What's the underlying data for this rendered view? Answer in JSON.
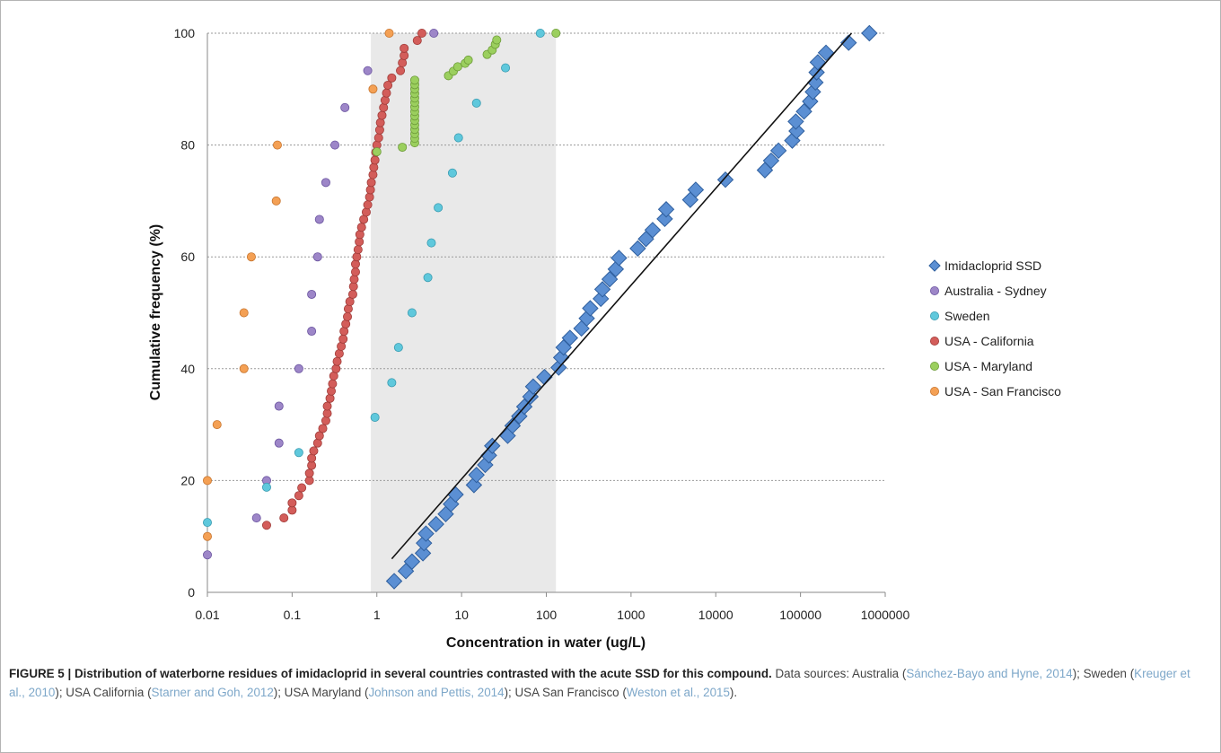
{
  "chart_data": {
    "type": "scatter",
    "xlabel": "Concentration in water (ug/L)",
    "ylabel": "Cumulative frequency (%)",
    "xscale": "log",
    "xlim": [
      0.01,
      1000000
    ],
    "ylim": [
      0,
      100
    ],
    "x_ticks": [
      "0.01",
      "0.1",
      "1",
      "10",
      "100",
      "1000",
      "10000",
      "100000",
      "1000000"
    ],
    "y_ticks": [
      "0",
      "20",
      "40",
      "60",
      "80",
      "100"
    ],
    "grid": "horizontal dotted",
    "shaded_band": {
      "x_from": 0.85,
      "x_to": 130,
      "color": "#e9e9e9"
    },
    "legend_position": "right",
    "trendline": {
      "series": "Imidacloprid SSD",
      "from": [
        1.5,
        6
      ],
      "to": [
        400000,
        100
      ],
      "color": "#111111"
    },
    "series": [
      {
        "name": "Imidacloprid SSD",
        "marker": "diamond",
        "color": "#5b8fd3",
        "stroke": "#2f5f9e",
        "points": [
          [
            1.6,
            2
          ],
          [
            2.2,
            3.8
          ],
          [
            2.6,
            5.5
          ],
          [
            3.5,
            7
          ],
          [
            3.6,
            8.8
          ],
          [
            3.8,
            10.5
          ],
          [
            5,
            12.2
          ],
          [
            6.5,
            14
          ],
          [
            7.5,
            15.8
          ],
          [
            8.5,
            17.5
          ],
          [
            14,
            19.2
          ],
          [
            15,
            21
          ],
          [
            19,
            22.8
          ],
          [
            21,
            24.5
          ],
          [
            23,
            26.2
          ],
          [
            35,
            28
          ],
          [
            40,
            29.8
          ],
          [
            48,
            31.5
          ],
          [
            55,
            33.2
          ],
          [
            65,
            35
          ],
          [
            70,
            36.8
          ],
          [
            95,
            38.5
          ],
          [
            140,
            40.2
          ],
          [
            150,
            42
          ],
          [
            160,
            43.8
          ],
          [
            190,
            45.5
          ],
          [
            260,
            47.2
          ],
          [
            300,
            49
          ],
          [
            330,
            50.8
          ],
          [
            440,
            52.5
          ],
          [
            460,
            54.2
          ],
          [
            560,
            56
          ],
          [
            660,
            57.8
          ],
          [
            720,
            59.8
          ],
          [
            1200,
            61.5
          ],
          [
            1500,
            63.2
          ],
          [
            1800,
            64.8
          ],
          [
            2500,
            66.8
          ],
          [
            2600,
            68.5
          ],
          [
            5000,
            70.2
          ],
          [
            5800,
            72
          ],
          [
            13000,
            73.8
          ],
          [
            38000,
            75.5
          ],
          [
            45000,
            77.2
          ],
          [
            55000,
            79
          ],
          [
            80000,
            80.8
          ],
          [
            90000,
            82.5
          ],
          [
            88000,
            84.2
          ],
          [
            110000,
            86
          ],
          [
            130000,
            87.8
          ],
          [
            140000,
            89.5
          ],
          [
            150000,
            91.2
          ],
          [
            155000,
            93
          ],
          [
            160000,
            94.8
          ],
          [
            200000,
            96.5
          ],
          [
            370000,
            98.3
          ],
          [
            650000,
            100
          ]
        ]
      },
      {
        "name": "Australia - Sydney",
        "marker": "circle",
        "color": "#9d86c8",
        "stroke": "#6b55a0",
        "points": [
          [
            0.01,
            6.7
          ],
          [
            0.038,
            13.3
          ],
          [
            0.05,
            20
          ],
          [
            0.07,
            26.7
          ],
          [
            0.07,
            33.3
          ],
          [
            0.12,
            40
          ],
          [
            0.17,
            46.7
          ],
          [
            0.17,
            53.3
          ],
          [
            0.2,
            60
          ],
          [
            0.21,
            66.7
          ],
          [
            0.25,
            73.3
          ],
          [
            0.32,
            80
          ],
          [
            0.42,
            86.7
          ],
          [
            0.78,
            93.3
          ],
          [
            4.7,
            100
          ]
        ]
      },
      {
        "name": "Sweden",
        "marker": "circle",
        "color": "#5fc8dc",
        "stroke": "#3a9bb0",
        "points": [
          [
            0.01,
            12.5
          ],
          [
            0.05,
            18.8
          ],
          [
            0.12,
            25
          ],
          [
            0.95,
            31.3
          ],
          [
            1.5,
            37.5
          ],
          [
            1.8,
            43.8
          ],
          [
            2.6,
            50
          ],
          [
            4,
            56.3
          ],
          [
            4.4,
            62.5
          ],
          [
            5.3,
            68.8
          ],
          [
            7.8,
            75
          ],
          [
            9.2,
            81.3
          ],
          [
            15,
            87.5
          ],
          [
            33,
            93.8
          ],
          [
            85,
            100
          ]
        ]
      },
      {
        "name": "USA - California",
        "marker": "circle",
        "color": "#d35d5a",
        "stroke": "#a03c39",
        "points": [
          [
            0.05,
            12
          ],
          [
            0.08,
            13.3
          ],
          [
            0.1,
            14.7
          ],
          [
            0.1,
            16
          ],
          [
            0.12,
            17.3
          ],
          [
            0.13,
            18.7
          ],
          [
            0.16,
            20
          ],
          [
            0.16,
            21.3
          ],
          [
            0.17,
            22.7
          ],
          [
            0.17,
            24
          ],
          [
            0.18,
            25.3
          ],
          [
            0.2,
            26.7
          ],
          [
            0.21,
            28
          ],
          [
            0.23,
            29.3
          ],
          [
            0.25,
            30.7
          ],
          [
            0.26,
            32
          ],
          [
            0.26,
            33.3
          ],
          [
            0.28,
            34.7
          ],
          [
            0.29,
            36
          ],
          [
            0.3,
            37.3
          ],
          [
            0.31,
            38.7
          ],
          [
            0.33,
            40
          ],
          [
            0.34,
            41.3
          ],
          [
            0.36,
            42.7
          ],
          [
            0.38,
            44
          ],
          [
            0.4,
            45.3
          ],
          [
            0.41,
            46.7
          ],
          [
            0.43,
            48
          ],
          [
            0.45,
            49.3
          ],
          [
            0.46,
            50.7
          ],
          [
            0.48,
            52
          ],
          [
            0.52,
            53.3
          ],
          [
            0.53,
            54.7
          ],
          [
            0.54,
            56
          ],
          [
            0.56,
            57.3
          ],
          [
            0.56,
            58.7
          ],
          [
            0.58,
            60
          ],
          [
            0.6,
            61.3
          ],
          [
            0.62,
            62.7
          ],
          [
            0.63,
            64
          ],
          [
            0.66,
            65.3
          ],
          [
            0.7,
            66.7
          ],
          [
            0.75,
            68
          ],
          [
            0.78,
            69.3
          ],
          [
            0.82,
            70.7
          ],
          [
            0.84,
            72
          ],
          [
            0.86,
            73.3
          ],
          [
            0.9,
            74.7
          ],
          [
            0.92,
            76
          ],
          [
            0.95,
            77.3
          ],
          [
            0.97,
            78.7
          ],
          [
            1.0,
            80
          ],
          [
            1.05,
            81.3
          ],
          [
            1.08,
            82.7
          ],
          [
            1.1,
            84
          ],
          [
            1.15,
            85.3
          ],
          [
            1.2,
            86.7
          ],
          [
            1.25,
            88
          ],
          [
            1.3,
            89.3
          ],
          [
            1.35,
            90.7
          ],
          [
            1.5,
            92
          ],
          [
            1.9,
            93.3
          ],
          [
            2.0,
            94.7
          ],
          [
            2.1,
            96
          ],
          [
            2.1,
            97.3
          ],
          [
            3.0,
            98.7
          ],
          [
            3.4,
            100
          ]
        ]
      },
      {
        "name": "USA - Maryland",
        "marker": "circle",
        "color": "#9bcf5e",
        "stroke": "#6e9c3a",
        "points": [
          [
            1.0,
            78.8
          ],
          [
            2.0,
            79.6
          ],
          [
            2.8,
            80.4
          ],
          [
            2.8,
            81.2
          ],
          [
            2.8,
            82
          ],
          [
            2.8,
            82.8
          ],
          [
            2.8,
            83.6
          ],
          [
            2.8,
            84.4
          ],
          [
            2.8,
            85.2
          ],
          [
            2.8,
            86
          ],
          [
            2.8,
            86.8
          ],
          [
            2.8,
            87.6
          ],
          [
            2.8,
            88.4
          ],
          [
            2.8,
            89.2
          ],
          [
            2.8,
            90
          ],
          [
            2.8,
            90.8
          ],
          [
            2.8,
            91.6
          ],
          [
            7,
            92.4
          ],
          [
            8,
            93.2
          ],
          [
            9,
            94
          ],
          [
            11,
            94.6
          ],
          [
            12,
            95.2
          ],
          [
            20,
            96.2
          ],
          [
            23,
            97
          ],
          [
            25,
            98
          ],
          [
            26,
            98.8
          ],
          [
            130,
            100
          ]
        ]
      },
      {
        "name": "USA - San Francisco",
        "marker": "circle",
        "color": "#f4a054",
        "stroke": "#c7752f",
        "points": [
          [
            0.01,
            10
          ],
          [
            0.01,
            20
          ],
          [
            0.013,
            30
          ],
          [
            0.027,
            40
          ],
          [
            0.027,
            50
          ],
          [
            0.033,
            60
          ],
          [
            0.065,
            70
          ],
          [
            0.067,
            80
          ],
          [
            0.9,
            90
          ],
          [
            1.4,
            100
          ]
        ]
      }
    ]
  },
  "caption": {
    "title": "FIGURE 5 | Distribution of waterborne residues of imidacloprid in several countries contrasted with the acute SSD for this compound.",
    "parts": [
      {
        "text": " Data sources: Australia (",
        "ref": false
      },
      {
        "text": "Sánchez-Bayo and Hyne, 2014",
        "ref": true
      },
      {
        "text": "); Sweden (",
        "ref": false
      },
      {
        "text": "Kreuger et al., 2010",
        "ref": true
      },
      {
        "text": "); USA California (",
        "ref": false
      },
      {
        "text": "Starner and Goh, 2012",
        "ref": true
      },
      {
        "text": "); USA Maryland (",
        "ref": false
      },
      {
        "text": "Johnson and Pettis, 2014",
        "ref": true
      },
      {
        "text": "); USA San Francisco (",
        "ref": false
      },
      {
        "text": "Weston et al., 2015",
        "ref": true
      },
      {
        "text": ").",
        "ref": false
      }
    ]
  }
}
